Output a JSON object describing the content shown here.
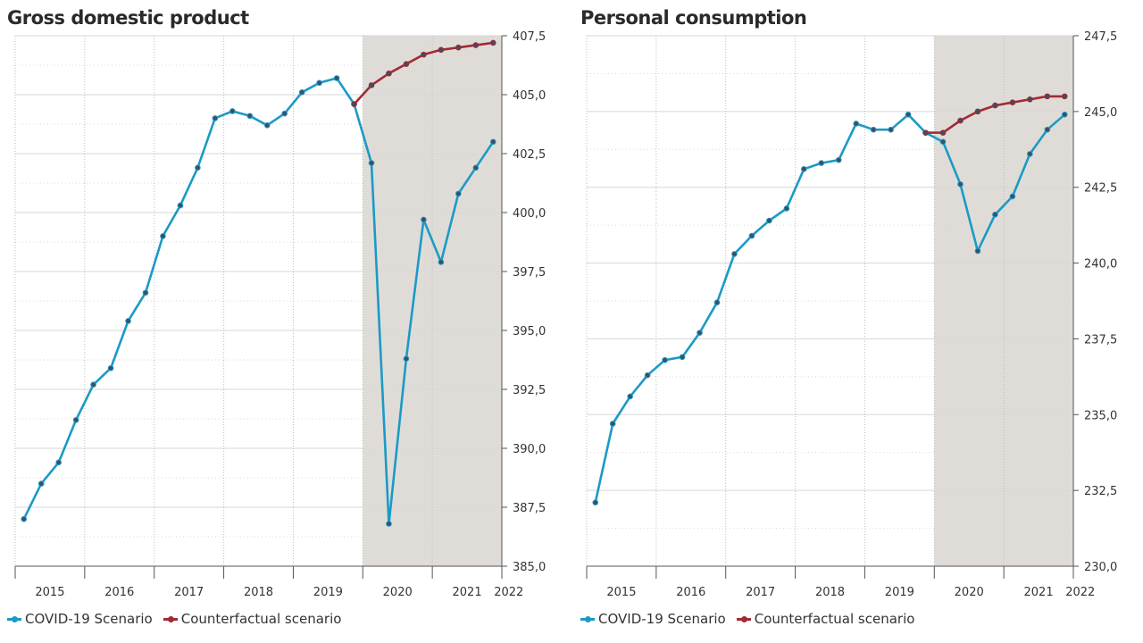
{
  "colors": {
    "covid": "#1b9ac5",
    "counterfactual": "#a22a34",
    "shade": "#dfdcd8",
    "grid": "#d7d7d7",
    "axis": "#555555"
  },
  "chart_data": [
    {
      "type": "line",
      "title": "Gross domestic product",
      "ylim": [
        385.0,
        407.5
      ],
      "yticks": [
        385.0,
        387.5,
        390.0,
        392.5,
        395.0,
        397.5,
        400.0,
        402.5,
        405.0,
        407.5
      ],
      "ytick_labels": [
        "385,0",
        "387,5",
        "390,0",
        "392,5",
        "395,0",
        "397,5",
        "400,0",
        "402,5",
        "405,0",
        "407,5"
      ],
      "year_labels": [
        "2015",
        "2016",
        "2017",
        "2018",
        "2019",
        "2020",
        "2021",
        "2022"
      ],
      "year_label_pos": [
        2015.5,
        2016.5,
        2017.5,
        2018.5,
        2019.5,
        2020.5,
        2021.5,
        2022.1
      ],
      "shaded_range": [
        2020.0,
        2022.0
      ],
      "grid": true,
      "legend_position": "bottom-left",
      "series": [
        {
          "name": "COVID-19 Scenario",
          "color": "#1b9ac5",
          "x": [
            2015.125,
            2015.375,
            2015.625,
            2015.875,
            2016.125,
            2016.375,
            2016.625,
            2016.875,
            2017.125,
            2017.375,
            2017.625,
            2017.875,
            2018.125,
            2018.375,
            2018.625,
            2018.875,
            2019.125,
            2019.375,
            2019.625,
            2019.875,
            2020.125,
            2020.375,
            2020.625,
            2020.875,
            2021.125,
            2021.375,
            2021.625,
            2021.875
          ],
          "values": [
            387.0,
            388.5,
            389.4,
            391.2,
            392.7,
            393.4,
            395.4,
            396.6,
            399.0,
            400.3,
            401.9,
            404.0,
            404.3,
            404.1,
            403.7,
            404.2,
            405.1,
            405.5,
            405.7,
            404.6,
            402.1,
            386.8,
            393.8,
            399.7,
            397.9,
            400.8,
            401.9,
            403.0
          ]
        },
        {
          "name": "Counterfactual scenario",
          "color": "#a22a34",
          "x": [
            2019.875,
            2020.125,
            2020.375,
            2020.625,
            2020.875,
            2021.125,
            2021.375,
            2021.625,
            2021.875
          ],
          "values": [
            404.6,
            405.4,
            405.9,
            406.3,
            406.7,
            406.9,
            407.0,
            407.1,
            407.2
          ]
        }
      ]
    },
    {
      "type": "line",
      "title": "Personal consumption",
      "ylim": [
        230.0,
        247.5
      ],
      "yticks": [
        230.0,
        232.5,
        235.0,
        237.5,
        240.0,
        242.5,
        245.0,
        247.5
      ],
      "ytick_labels": [
        "230,0",
        "232,5",
        "235,0",
        "237,5",
        "240,0",
        "242,5",
        "245,0",
        "247,5"
      ],
      "year_labels": [
        "2015",
        "2016",
        "2017",
        "2018",
        "2019",
        "2020",
        "2021",
        "2022"
      ],
      "year_label_pos": [
        2015.5,
        2016.5,
        2017.5,
        2018.5,
        2019.5,
        2020.5,
        2021.5,
        2022.1
      ],
      "shaded_range": [
        2020.0,
        2022.0
      ],
      "grid": true,
      "legend_position": "bottom-left",
      "series": [
        {
          "name": "COVID-19 Scenario",
          "color": "#1b9ac5",
          "x": [
            2015.125,
            2015.375,
            2015.625,
            2015.875,
            2016.125,
            2016.375,
            2016.625,
            2016.875,
            2017.125,
            2017.375,
            2017.625,
            2017.875,
            2018.125,
            2018.375,
            2018.625,
            2018.875,
            2019.125,
            2019.375,
            2019.625,
            2019.875,
            2020.125,
            2020.375,
            2020.625,
            2020.875,
            2021.125,
            2021.375,
            2021.625,
            2021.875
          ],
          "values": [
            232.1,
            234.7,
            235.6,
            236.3,
            236.8,
            236.9,
            237.7,
            238.7,
            240.3,
            240.9,
            241.4,
            241.8,
            243.1,
            243.3,
            243.4,
            244.6,
            244.4,
            244.4,
            244.9,
            244.3,
            244.0,
            242.6,
            240.4,
            241.6,
            242.2,
            243.6,
            244.4,
            244.9
          ]
        },
        {
          "name": "Counterfactual scenario",
          "color": "#a22a34",
          "x": [
            2019.875,
            2020.125,
            2020.375,
            2020.625,
            2020.875,
            2021.125,
            2021.375,
            2021.625,
            2021.875
          ],
          "values": [
            244.3,
            244.3,
            244.7,
            245.0,
            245.2,
            245.3,
            245.4,
            245.5,
            245.5
          ]
        }
      ]
    }
  ]
}
